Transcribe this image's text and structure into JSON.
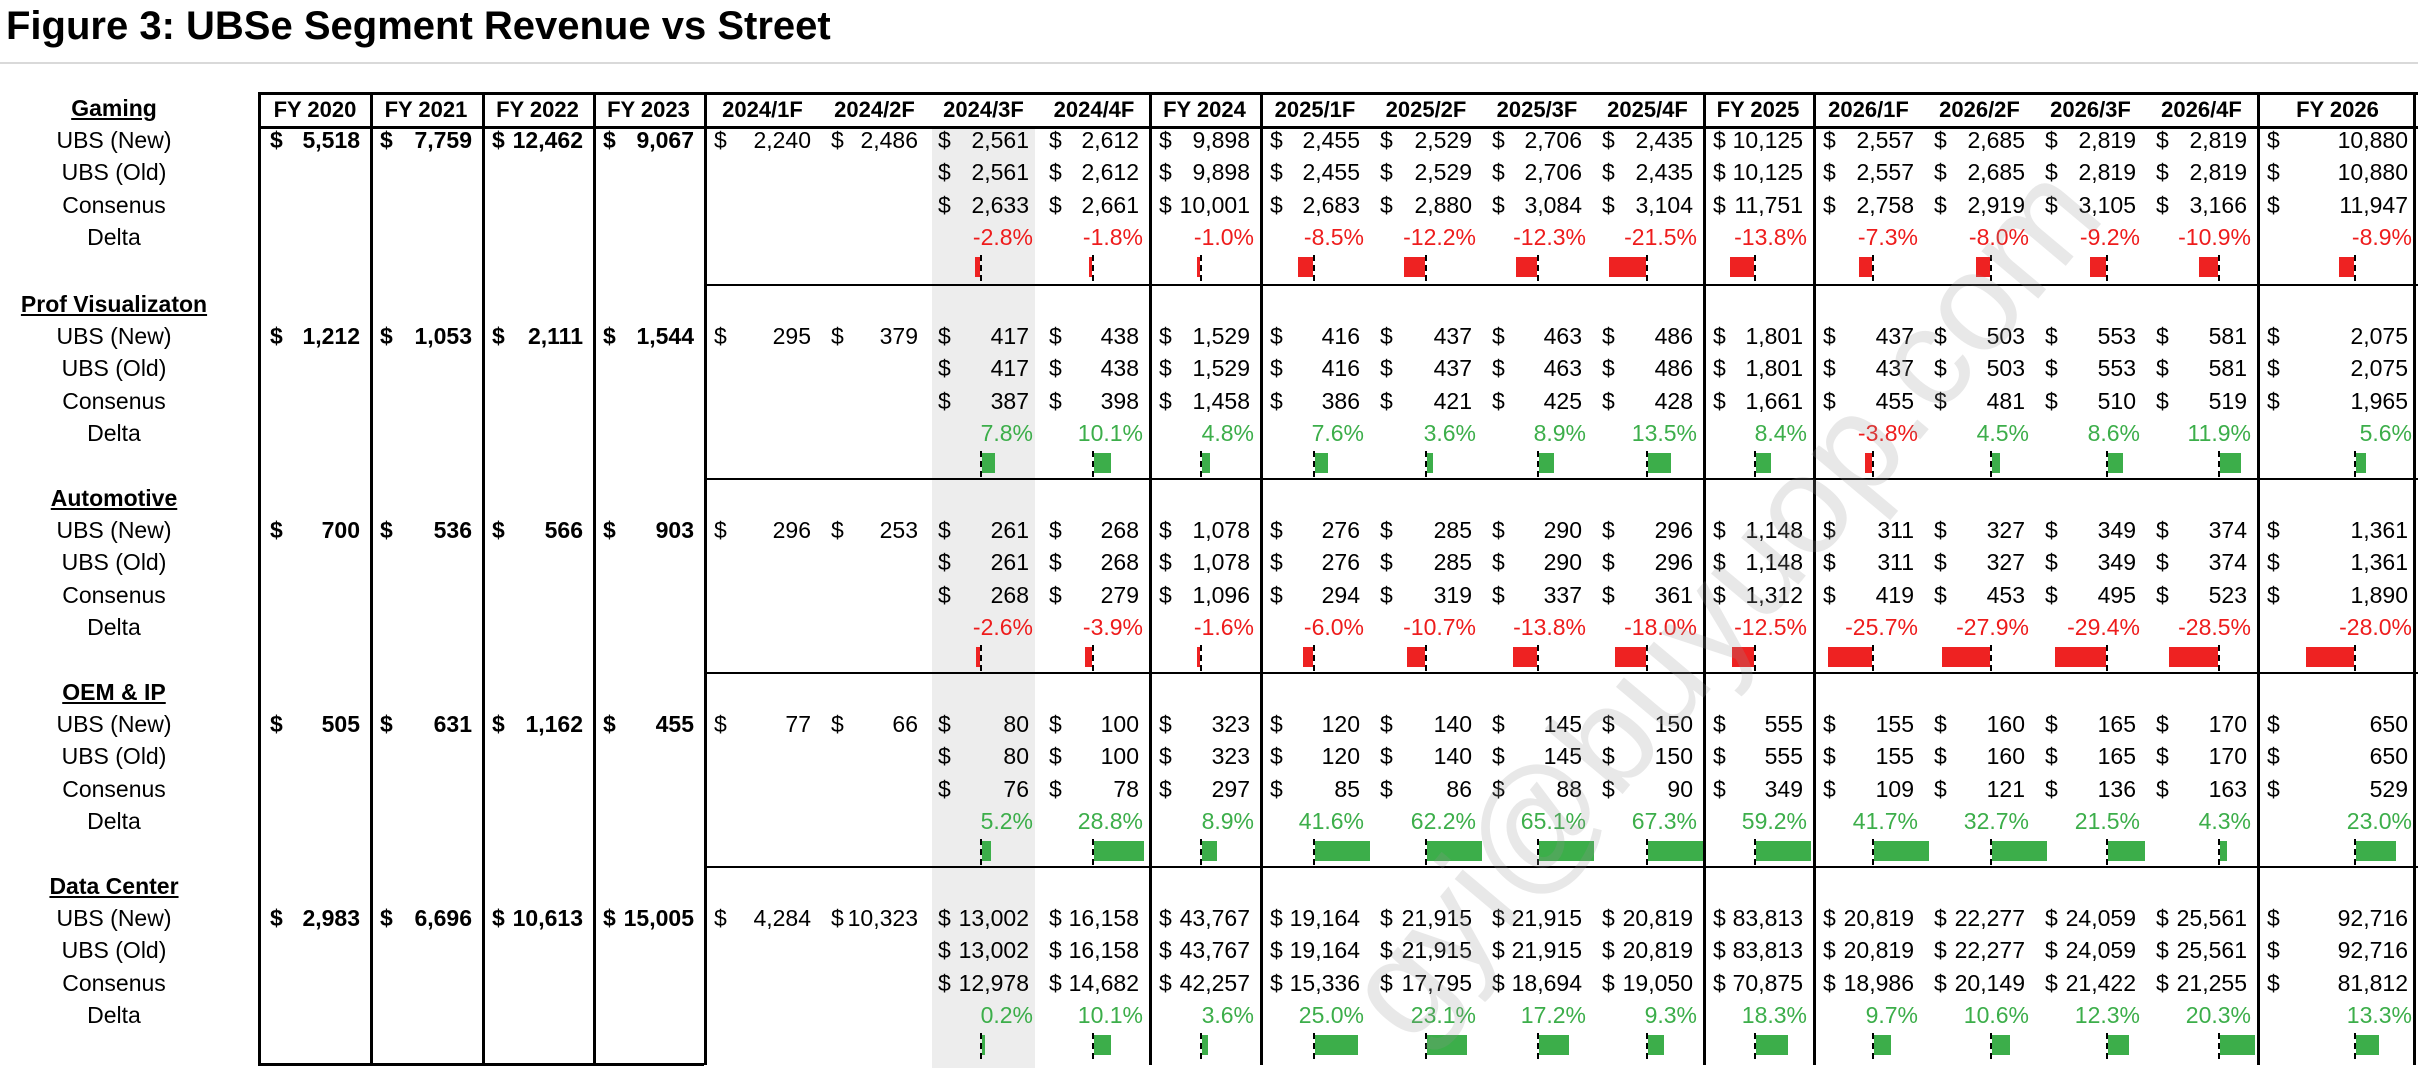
{
  "title": "Figure 3: UBSe Segment Revenue vs Street",
  "watermark": "gyi@buyuop.com",
  "colors": {
    "negative": "#ee1c1c",
    "positive": "#3cae4a",
    "shade": "#ededed"
  },
  "columns": [
    "FY 2020",
    "FY 2021",
    "FY 2022",
    "FY 2023",
    "2024/1F",
    "2024/2F",
    "2024/3F",
    "2024/4F",
    "FY 2024",
    "2025/1F",
    "2025/2F",
    "2025/3F",
    "2025/4F",
    "FY 2025",
    "2026/1F",
    "2026/2F",
    "2026/3F",
    "2026/4F",
    "FY 2026"
  ],
  "row_labels": [
    "UBS (New)",
    "UBS (Old)",
    "Consenus",
    "Delta"
  ],
  "segments": [
    {
      "name": "Gaming",
      "ubs_new": [
        "5,518",
        "7,759",
        "12,462",
        "9,067",
        "2,240",
        "2,486",
        "2,561",
        "2,612",
        "9,898",
        "2,455",
        "2,529",
        "2,706",
        "2,435",
        "10,125",
        "2,557",
        "2,685",
        "2,819",
        "2,819",
        "10,880"
      ],
      "ubs_old": [
        "",
        "",
        "",
        "",
        "",
        "",
        "2,561",
        "2,612",
        "9,898",
        "2,455",
        "2,529",
        "2,706",
        "2,435",
        "10,125",
        "2,557",
        "2,685",
        "2,819",
        "2,819",
        "10,880"
      ],
      "consensus": [
        "",
        "",
        "",
        "",
        "",
        "",
        "2,633",
        "2,661",
        "10,001",
        "2,683",
        "2,880",
        "3,084",
        "3,104",
        "11,751",
        "2,758",
        "2,919",
        "3,105",
        "3,166",
        "11,947"
      ],
      "delta": [
        "",
        "",
        "",
        "",
        "",
        "",
        "-2.8%",
        "-1.8%",
        "-1.0%",
        "-8.5%",
        "-12.2%",
        "-12.3%",
        "-21.5%",
        "-13.8%",
        "-7.3%",
        "-8.0%",
        "-9.2%",
        "-10.9%",
        "-8.9%"
      ],
      "delta_values": [
        null,
        null,
        null,
        null,
        null,
        null,
        -2.8,
        -1.8,
        -1.0,
        -8.5,
        -12.2,
        -12.3,
        -21.5,
        -13.8,
        -7.3,
        -8.0,
        -9.2,
        -10.9,
        -8.9
      ]
    },
    {
      "name": "Prof Visualizaton",
      "ubs_new": [
        "1,212",
        "1,053",
        "2,111",
        "1,544",
        "295",
        "379",
        "417",
        "438",
        "1,529",
        "416",
        "437",
        "463",
        "486",
        "1,801",
        "437",
        "503",
        "553",
        "581",
        "2,075"
      ],
      "ubs_old": [
        "",
        "",
        "",
        "",
        "",
        "",
        "417",
        "438",
        "1,529",
        "416",
        "437",
        "463",
        "486",
        "1,801",
        "437",
        "503",
        "553",
        "581",
        "2,075"
      ],
      "consensus": [
        "",
        "",
        "",
        "",
        "",
        "",
        "387",
        "398",
        "1,458",
        "386",
        "421",
        "425",
        "428",
        "1,661",
        "455",
        "481",
        "510",
        "519",
        "1,965"
      ],
      "delta": [
        "",
        "",
        "",
        "",
        "",
        "",
        "7.8%",
        "10.1%",
        "4.8%",
        "7.6%",
        "3.6%",
        "8.9%",
        "13.5%",
        "8.4%",
        "-3.8%",
        "4.5%",
        "8.6%",
        "11.9%",
        "5.6%"
      ],
      "delta_values": [
        null,
        null,
        null,
        null,
        null,
        null,
        7.8,
        10.1,
        4.8,
        7.6,
        3.6,
        8.9,
        13.5,
        8.4,
        -3.8,
        4.5,
        8.6,
        11.9,
        5.6
      ]
    },
    {
      "name": "Automotive",
      "ubs_new": [
        "700",
        "536",
        "566",
        "903",
        "296",
        "253",
        "261",
        "268",
        "1,078",
        "276",
        "285",
        "290",
        "296",
        "1,148",
        "311",
        "327",
        "349",
        "374",
        "1,361"
      ],
      "ubs_old": [
        "",
        "",
        "",
        "",
        "",
        "",
        "261",
        "268",
        "1,078",
        "276",
        "285",
        "290",
        "296",
        "1,148",
        "311",
        "327",
        "349",
        "374",
        "1,361"
      ],
      "consensus": [
        "",
        "",
        "",
        "",
        "",
        "",
        "268",
        "279",
        "1,096",
        "294",
        "319",
        "337",
        "361",
        "1,312",
        "419",
        "453",
        "495",
        "523",
        "1,890"
      ],
      "delta": [
        "",
        "",
        "",
        "",
        "",
        "",
        "-2.6%",
        "-3.9%",
        "-1.6%",
        "-6.0%",
        "-10.7%",
        "-13.8%",
        "-18.0%",
        "-12.5%",
        "-25.7%",
        "-27.9%",
        "-29.4%",
        "-28.5%",
        "-28.0%"
      ],
      "delta_values": [
        null,
        null,
        null,
        null,
        null,
        null,
        -2.6,
        -3.9,
        -1.6,
        -6.0,
        -10.7,
        -13.8,
        -18.0,
        -12.5,
        -25.7,
        -27.9,
        -29.4,
        -28.5,
        -28.0
      ]
    },
    {
      "name": "OEM & IP",
      "ubs_new": [
        "505",
        "631",
        "1,162",
        "455",
        "77",
        "66",
        "80",
        "100",
        "323",
        "120",
        "140",
        "145",
        "150",
        "555",
        "155",
        "160",
        "165",
        "170",
        "650"
      ],
      "ubs_old": [
        "",
        "",
        "",
        "",
        "",
        "",
        "80",
        "100",
        "323",
        "120",
        "140",
        "145",
        "150",
        "555",
        "155",
        "160",
        "165",
        "170",
        "650"
      ],
      "consensus": [
        "",
        "",
        "",
        "",
        "",
        "",
        "76",
        "78",
        "297",
        "85",
        "86",
        "88",
        "90",
        "349",
        "109",
        "121",
        "136",
        "163",
        "529"
      ],
      "delta": [
        "",
        "",
        "",
        "",
        "",
        "",
        "5.2%",
        "28.8%",
        "8.9%",
        "41.6%",
        "62.2%",
        "65.1%",
        "67.3%",
        "59.2%",
        "41.7%",
        "32.7%",
        "21.5%",
        "4.3%",
        "23.0%"
      ],
      "delta_values": [
        null,
        null,
        null,
        null,
        null,
        null,
        5.2,
        28.8,
        8.9,
        41.6,
        62.2,
        65.1,
        67.3,
        59.2,
        41.7,
        32.7,
        21.5,
        4.3,
        23.0
      ]
    },
    {
      "name": "Data Center",
      "ubs_new": [
        "2,983",
        "6,696",
        "10,613",
        "15,005",
        "4,284",
        "10,323",
        "13,002",
        "16,158",
        "43,767",
        "19,164",
        "21,915",
        "21,915",
        "20,819",
        "83,813",
        "20,819",
        "22,277",
        "24,059",
        "25,561",
        "92,716"
      ],
      "ubs_old": [
        "",
        "",
        "",
        "",
        "",
        "",
        "13,002",
        "16,158",
        "43,767",
        "19,164",
        "21,915",
        "21,915",
        "20,819",
        "83,813",
        "20,819",
        "22,277",
        "24,059",
        "25,561",
        "92,716"
      ],
      "consensus": [
        "",
        "",
        "",
        "",
        "",
        "",
        "12,978",
        "14,682",
        "42,257",
        "15,336",
        "17,795",
        "18,694",
        "19,050",
        "70,875",
        "18,986",
        "20,149",
        "21,422",
        "21,255",
        "81,812"
      ],
      "delta": [
        "",
        "",
        "",
        "",
        "",
        "",
        "0.2%",
        "10.1%",
        "3.6%",
        "25.0%",
        "23.1%",
        "17.2%",
        "9.3%",
        "18.3%",
        "9.7%",
        "10.6%",
        "12.3%",
        "20.3%",
        "13.3%"
      ],
      "delta_values": [
        null,
        null,
        null,
        null,
        null,
        null,
        0.2,
        10.1,
        3.6,
        25.0,
        23.1,
        17.2,
        9.3,
        18.3,
        9.7,
        10.6,
        12.3,
        20.3,
        13.3
      ]
    }
  ]
}
